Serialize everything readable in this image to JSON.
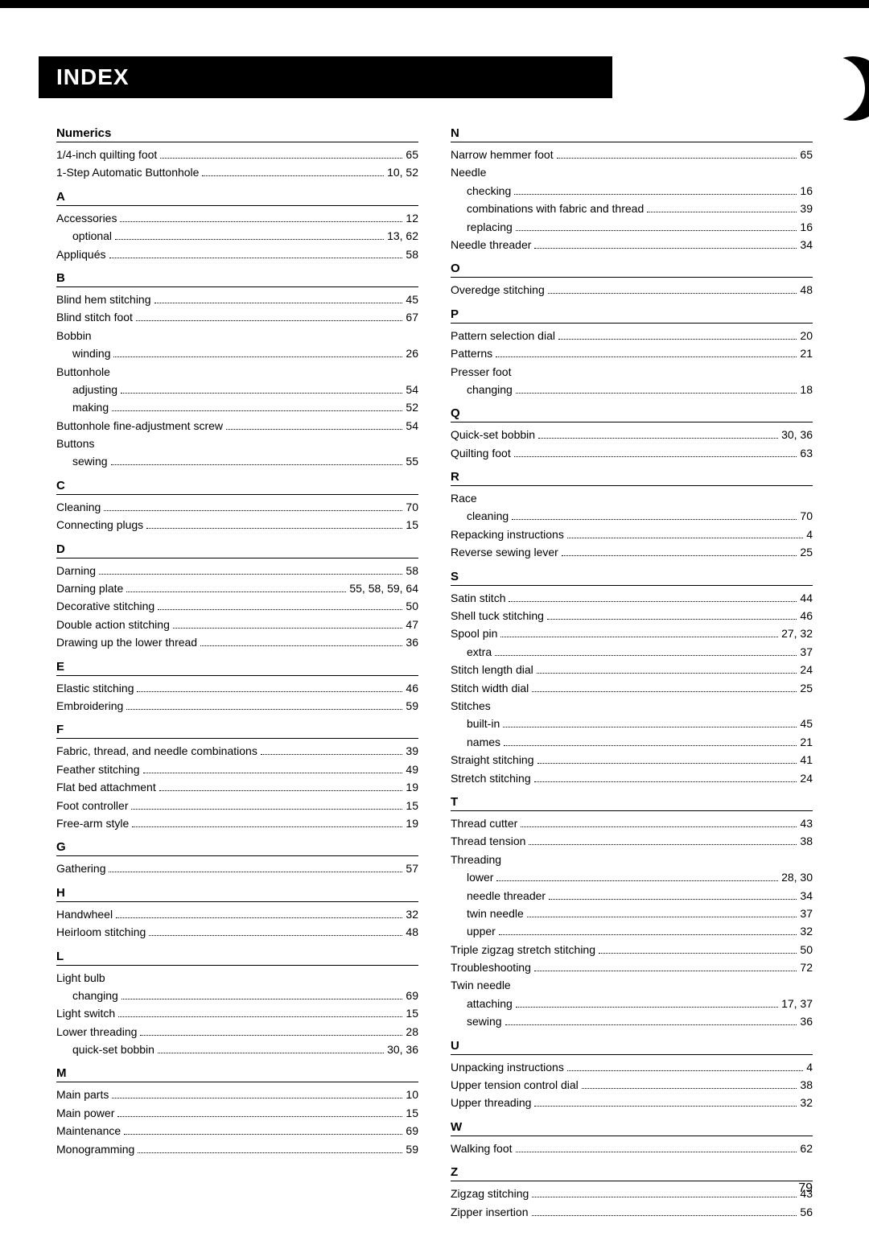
{
  "page_number": "79",
  "title": "INDEX",
  "colors": {
    "background": "#ffffff",
    "text": "#000000",
    "header_bg": "#000000",
    "header_text": "#ffffff"
  },
  "left_column": [
    {
      "type": "head",
      "text": "Numerics"
    },
    {
      "type": "entry",
      "label": "1/4-inch quilting foot",
      "page": "65"
    },
    {
      "type": "entry",
      "label": "1-Step Automatic Buttonhole",
      "page": "10, 52"
    },
    {
      "type": "head",
      "text": "A"
    },
    {
      "type": "entry",
      "label": "Accessories",
      "page": "12"
    },
    {
      "type": "entry",
      "label": "optional",
      "page": "13, 62",
      "sub": true
    },
    {
      "type": "entry",
      "label": "Appliqués",
      "page": "58"
    },
    {
      "type": "head",
      "text": "B"
    },
    {
      "type": "entry",
      "label": "Blind hem stitching",
      "page": "45"
    },
    {
      "type": "entry",
      "label": "Blind stitch foot",
      "page": "67"
    },
    {
      "type": "noentry",
      "text": "Bobbin"
    },
    {
      "type": "entry",
      "label": "winding",
      "page": "26",
      "sub": true
    },
    {
      "type": "noentry",
      "text": "Buttonhole"
    },
    {
      "type": "entry",
      "label": "adjusting",
      "page": "54",
      "sub": true
    },
    {
      "type": "entry",
      "label": "making",
      "page": "52",
      "sub": true
    },
    {
      "type": "entry",
      "label": "Buttonhole fine-adjustment screw",
      "page": "54"
    },
    {
      "type": "noentry",
      "text": "Buttons"
    },
    {
      "type": "entry",
      "label": "sewing",
      "page": "55",
      "sub": true
    },
    {
      "type": "head",
      "text": "C"
    },
    {
      "type": "entry",
      "label": "Cleaning",
      "page": "70"
    },
    {
      "type": "entry",
      "label": "Connecting plugs",
      "page": "15"
    },
    {
      "type": "head",
      "text": "D"
    },
    {
      "type": "entry",
      "label": "Darning",
      "page": "58"
    },
    {
      "type": "entry",
      "label": "Darning plate",
      "page": "55, 58, 59, 64"
    },
    {
      "type": "entry",
      "label": "Decorative stitching",
      "page": "50"
    },
    {
      "type": "entry",
      "label": "Double action stitching",
      "page": "47"
    },
    {
      "type": "entry",
      "label": "Drawing up the lower thread",
      "page": "36"
    },
    {
      "type": "head",
      "text": "E"
    },
    {
      "type": "entry",
      "label": "Elastic stitching",
      "page": "46"
    },
    {
      "type": "entry",
      "label": "Embroidering",
      "page": "59"
    },
    {
      "type": "head",
      "text": "F"
    },
    {
      "type": "entry",
      "label": "Fabric, thread, and needle combinations",
      "page": "39"
    },
    {
      "type": "entry",
      "label": "Feather stitching",
      "page": "49"
    },
    {
      "type": "entry",
      "label": "Flat bed attachment",
      "page": "19"
    },
    {
      "type": "entry",
      "label": "Foot controller",
      "page": "15"
    },
    {
      "type": "entry",
      "label": "Free-arm style",
      "page": "19"
    },
    {
      "type": "head",
      "text": "G"
    },
    {
      "type": "entry",
      "label": "Gathering",
      "page": "57"
    },
    {
      "type": "head",
      "text": "H"
    },
    {
      "type": "entry",
      "label": "Handwheel",
      "page": "32"
    },
    {
      "type": "entry",
      "label": "Heirloom stitching",
      "page": "48"
    },
    {
      "type": "head",
      "text": "L"
    },
    {
      "type": "noentry",
      "text": "Light bulb"
    },
    {
      "type": "entry",
      "label": "changing",
      "page": "69",
      "sub": true
    },
    {
      "type": "entry",
      "label": "Light switch",
      "page": "15"
    },
    {
      "type": "entry",
      "label": "Lower threading",
      "page": "28"
    },
    {
      "type": "entry",
      "label": "quick-set bobbin",
      "page": "30, 36",
      "sub": true
    },
    {
      "type": "head",
      "text": "M"
    },
    {
      "type": "entry",
      "label": "Main parts",
      "page": "10"
    },
    {
      "type": "entry",
      "label": "Main power",
      "page": "15"
    },
    {
      "type": "entry",
      "label": "Maintenance",
      "page": "69"
    },
    {
      "type": "entry",
      "label": "Monogramming",
      "page": "59"
    }
  ],
  "right_column": [
    {
      "type": "head",
      "text": "N"
    },
    {
      "type": "entry",
      "label": "Narrow hemmer foot",
      "page": "65"
    },
    {
      "type": "noentry",
      "text": "Needle"
    },
    {
      "type": "entry",
      "label": "checking",
      "page": "16",
      "sub": true
    },
    {
      "type": "entry",
      "label": "combinations with fabric and thread",
      "page": "39",
      "sub": true
    },
    {
      "type": "entry",
      "label": "replacing",
      "page": "16",
      "sub": true
    },
    {
      "type": "entry",
      "label": "Needle threader",
      "page": "34"
    },
    {
      "type": "head",
      "text": "O"
    },
    {
      "type": "entry",
      "label": "Overedge stitching",
      "page": "48"
    },
    {
      "type": "head",
      "text": "P"
    },
    {
      "type": "entry",
      "label": "Pattern selection dial",
      "page": "20"
    },
    {
      "type": "entry",
      "label": "Patterns",
      "page": "21"
    },
    {
      "type": "noentry",
      "text": "Presser foot"
    },
    {
      "type": "entry",
      "label": "changing",
      "page": "18",
      "sub": true
    },
    {
      "type": "head",
      "text": "Q"
    },
    {
      "type": "entry",
      "label": "Quick-set bobbin",
      "page": "30, 36"
    },
    {
      "type": "entry",
      "label": "Quilting foot",
      "page": "63"
    },
    {
      "type": "head",
      "text": "R"
    },
    {
      "type": "noentry",
      "text": "Race"
    },
    {
      "type": "entry",
      "label": "cleaning",
      "page": "70",
      "sub": true
    },
    {
      "type": "entry",
      "label": "Repacking instructions",
      "page": "4"
    },
    {
      "type": "entry",
      "label": "Reverse sewing lever",
      "page": "25"
    },
    {
      "type": "head",
      "text": "S"
    },
    {
      "type": "entry",
      "label": "Satin stitch",
      "page": "44"
    },
    {
      "type": "entry",
      "label": "Shell tuck stitching",
      "page": "46"
    },
    {
      "type": "entry",
      "label": "Spool pin",
      "page": "27, 32"
    },
    {
      "type": "entry",
      "label": "extra",
      "page": "37",
      "sub": true
    },
    {
      "type": "entry",
      "label": "Stitch length dial",
      "page": "24"
    },
    {
      "type": "entry",
      "label": "Stitch width dial",
      "page": "25"
    },
    {
      "type": "noentry",
      "text": "Stitches"
    },
    {
      "type": "entry",
      "label": "built-in",
      "page": "45",
      "sub": true
    },
    {
      "type": "entry",
      "label": "names",
      "page": "21",
      "sub": true
    },
    {
      "type": "entry",
      "label": "Straight stitching",
      "page": "41"
    },
    {
      "type": "entry",
      "label": "Stretch stitching",
      "page": "24"
    },
    {
      "type": "head",
      "text": "T"
    },
    {
      "type": "entry",
      "label": "Thread cutter",
      "page": "43"
    },
    {
      "type": "entry",
      "label": "Thread tension",
      "page": "38"
    },
    {
      "type": "noentry",
      "text": "Threading"
    },
    {
      "type": "entry",
      "label": "lower",
      "page": "28, 30",
      "sub": true
    },
    {
      "type": "entry",
      "label": "needle threader",
      "page": "34",
      "sub": true
    },
    {
      "type": "entry",
      "label": "twin needle",
      "page": "37",
      "sub": true
    },
    {
      "type": "entry",
      "label": "upper",
      "page": "32",
      "sub": true
    },
    {
      "type": "entry",
      "label": "Triple zigzag stretch stitching",
      "page": "50"
    },
    {
      "type": "entry",
      "label": "Troubleshooting",
      "page": "72"
    },
    {
      "type": "noentry",
      "text": "Twin needle"
    },
    {
      "type": "entry",
      "label": "attaching",
      "page": "17, 37",
      "sub": true
    },
    {
      "type": "entry",
      "label": "sewing",
      "page": "36",
      "sub": true
    },
    {
      "type": "head",
      "text": "U"
    },
    {
      "type": "entry",
      "label": "Unpacking instructions",
      "page": "4"
    },
    {
      "type": "entry",
      "label": "Upper tension control dial",
      "page": "38"
    },
    {
      "type": "entry",
      "label": "Upper threading",
      "page": "32"
    },
    {
      "type": "head",
      "text": "W"
    },
    {
      "type": "entry",
      "label": "Walking foot",
      "page": "62"
    },
    {
      "type": "head",
      "text": "Z"
    },
    {
      "type": "entry",
      "label": "Zigzag stitching",
      "page": "43"
    },
    {
      "type": "entry",
      "label": "Zipper insertion",
      "page": "56"
    }
  ]
}
